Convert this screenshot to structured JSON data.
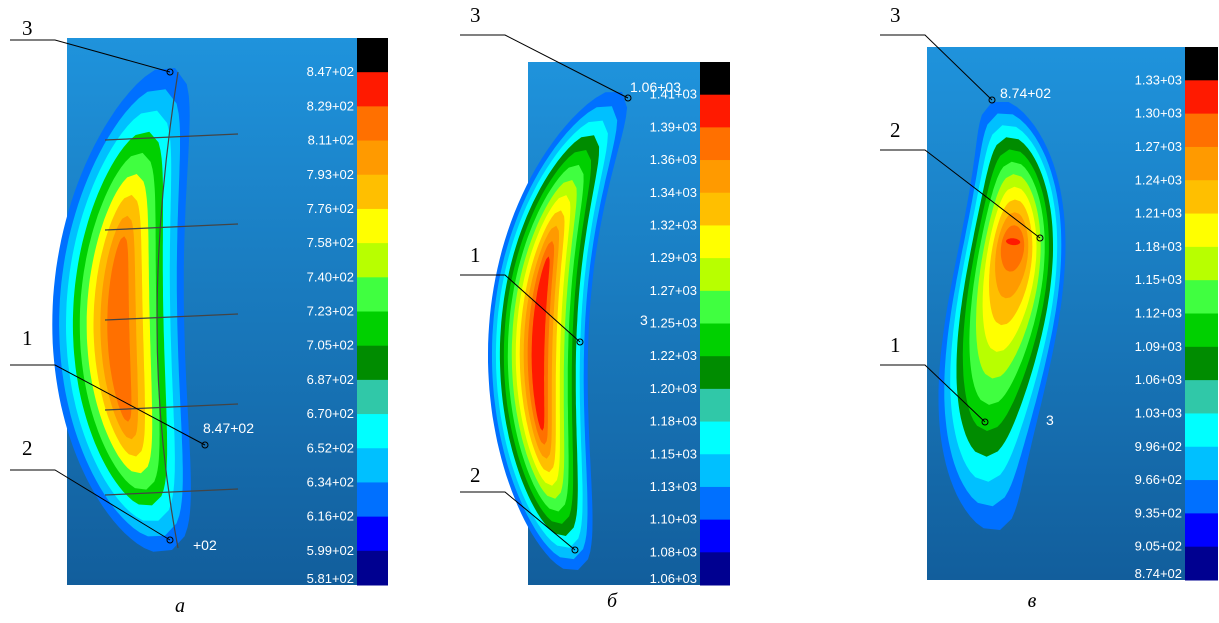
{
  "colormap": [
    "#000000",
    "#ff1a00",
    "#ff7000",
    "#ff9a00",
    "#ffbf00",
    "#ffff00",
    "#b8ff00",
    "#40ff40",
    "#00d000",
    "#008c00",
    "#30c8a8",
    "#00ffff",
    "#00c0ff",
    "#0070ff",
    "#0000ff",
    "#000090"
  ],
  "panels": [
    {
      "caption": "а",
      "colorbar": [
        "8.47+02",
        "8.29+02",
        "8.11+02",
        "7.93+02",
        "7.76+02",
        "7.58+02",
        "7.40+02",
        "7.23+02",
        "7.05+02",
        "6.87+02",
        "6.70+02",
        "6.52+02",
        "6.34+02",
        "6.16+02",
        "5.99+02",
        "5.81+02"
      ],
      "points": [
        "3",
        "1",
        "2"
      ],
      "annotations": [
        "8.47+02",
        "+02"
      ]
    },
    {
      "caption": "б",
      "colorbar": [
        "1.41+03",
        "1.39+03",
        "1.36+03",
        "1.34+03",
        "1.32+03",
        "1.29+03",
        "1.27+03",
        "1.25+03",
        "1.22+03",
        "1.20+03",
        "1.18+03",
        "1.15+03",
        "1.13+03",
        "1.10+03",
        "1.08+03",
        "1.06+03"
      ],
      "points": [
        "3",
        "1",
        "2"
      ],
      "annotations": [
        "1.06+03",
        "3"
      ]
    },
    {
      "caption": "в",
      "colorbar": [
        "1.33+03",
        "1.30+03",
        "1.27+03",
        "1.24+03",
        "1.21+03",
        "1.18+03",
        "1.15+03",
        "1.12+03",
        "1.09+03",
        "1.06+03",
        "1.03+03",
        "9.96+02",
        "9.66+02",
        "9.35+02",
        "9.05+02",
        "8.74+02"
      ],
      "points": [
        "3",
        "2",
        "1"
      ],
      "annotations": [
        "8.74+02",
        "3"
      ]
    }
  ]
}
